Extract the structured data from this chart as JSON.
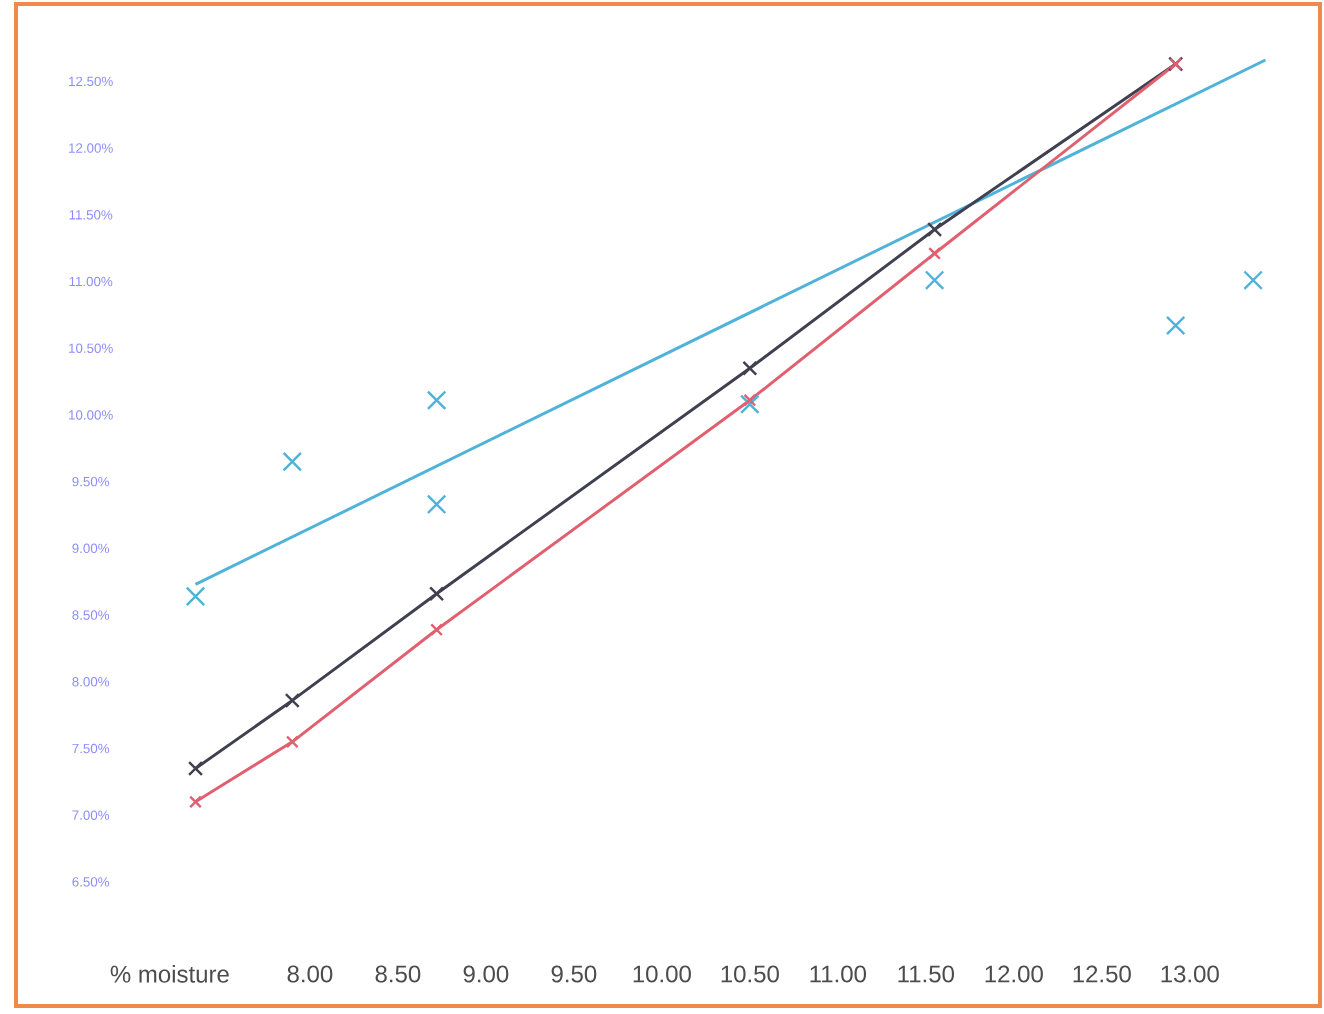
{
  "chart_data": {
    "type": "line",
    "xlabel": "% moisture",
    "xlim": [
      6.33,
      13.74
    ],
    "ylim": [
      5.57,
      13.08
    ],
    "xticks": [
      {
        "value": 8,
        "label": "8.00"
      },
      {
        "value": 8.5,
        "label": "8.50"
      },
      {
        "value": 9,
        "label": "9.00"
      },
      {
        "value": 9.5,
        "label": "9.50"
      },
      {
        "value": 10,
        "label": "10.00"
      },
      {
        "value": 10.5,
        "label": "10.50"
      },
      {
        "value": 11,
        "label": "11.00"
      },
      {
        "value": 11.5,
        "label": "11.50"
      },
      {
        "value": 12,
        "label": "12.00"
      },
      {
        "value": 12.5,
        "label": "12.50"
      },
      {
        "value": 13,
        "label": "13.00"
      }
    ],
    "yticks": [
      {
        "value": 6.5,
        "label": "6.50%"
      },
      {
        "value": 7,
        "label": "7.00%"
      },
      {
        "value": 7.5,
        "label": "7.50%"
      },
      {
        "value": 8,
        "label": "8.00%"
      },
      {
        "value": 8.5,
        "label": "8.50%"
      },
      {
        "value": 9,
        "label": "9.00%"
      },
      {
        "value": 9.5,
        "label": "9.50%"
      },
      {
        "value": 10,
        "label": "10.00%"
      },
      {
        "value": 10.5,
        "label": "10.50%"
      },
      {
        "value": 11,
        "label": "11.00%"
      },
      {
        "value": 11.5,
        "label": "11.50%"
      },
      {
        "value": 12,
        "label": "12.00%"
      },
      {
        "value": 12.5,
        "label": "12.50%"
      }
    ],
    "grid": false,
    "marker": "cross",
    "line_style": "solid",
    "series": [
      {
        "type": "scatter",
        "color": "#4fb3d9",
        "x": [
          7.35,
          7.9,
          8.72,
          8.72,
          10.5,
          11.55,
          12.92,
          13.36
        ],
        "values": [
          8.64,
          9.65,
          10.11,
          9.33,
          10.08,
          11.01,
          10.67,
          11.01
        ]
      },
      {
        "marker": "none",
        "color": "#4fb3d9",
        "x": [
          7.35,
          13.43
        ],
        "values": [
          8.73,
          12.66
        ]
      },
      {
        "color": "#404050",
        "x": [
          7.35,
          7.9,
          8.72,
          10.5,
          11.55,
          12.92
        ],
        "values": [
          7.35,
          7.86,
          8.66,
          10.35,
          11.39,
          12.63
        ]
      },
      {
        "color": "#e06070",
        "x": [
          7.35,
          7.9,
          8.72,
          10.5,
          11.55,
          12.92
        ],
        "values": [
          7.1,
          7.55,
          8.39,
          10.11,
          11.21,
          12.63
        ]
      }
    ]
  }
}
